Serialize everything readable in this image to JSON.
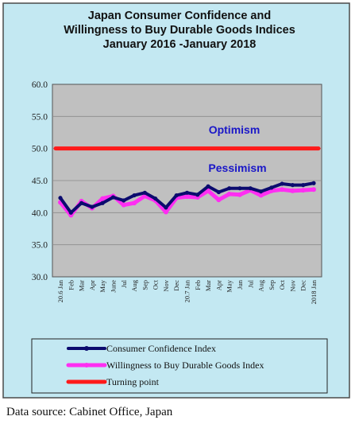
{
  "chart_data": {
    "type": "line",
    "title_lines": [
      "Japan Consumer Confidence and",
      "Willingness to Buy Durable Goods Indices",
      "January 2016 -January 2018"
    ],
    "x": [
      "20.6 Jan",
      "Feb",
      "Mar",
      "Apr",
      "May",
      "June",
      "Jul",
      "Aug",
      "Sep",
      "Oct",
      "Nov",
      "Dec",
      "20.7 Jan",
      "Feb",
      "Mar",
      "Apr",
      "May",
      "Jun",
      "Jul",
      "Aug",
      "Sep",
      "Oct",
      "Nov",
      "Dec",
      "2018 Jan"
    ],
    "y_ticks": [
      "60.0",
      "55.0",
      "50.0",
      "45.0",
      "40.0",
      "35.0",
      "30.0"
    ],
    "ylim": [
      30,
      60
    ],
    "grid": true,
    "series": [
      {
        "name": "Consumer Confidence Index",
        "color": "#0b0b6e",
        "values": [
          42.3,
          40.0,
          41.5,
          40.9,
          41.5,
          42.4,
          41.9,
          42.7,
          43.1,
          42.2,
          40.8,
          42.7,
          43.1,
          42.8,
          44.1,
          43.2,
          43.8,
          43.8,
          43.8,
          43.3,
          43.9,
          44.5,
          44.3,
          44.3,
          44.6
        ]
      },
      {
        "name": "Willingness to Buy Durable Goods Index",
        "color": "#ff2ef2",
        "values": [
          41.6,
          39.6,
          41.8,
          40.7,
          42.2,
          42.6,
          41.2,
          41.5,
          42.6,
          41.9,
          40.1,
          42.3,
          42.5,
          42.4,
          43.4,
          42.0,
          42.9,
          42.8,
          43.5,
          42.7,
          43.4,
          43.6,
          43.4,
          43.5,
          43.6
        ]
      },
      {
        "name": "Turning point",
        "color": "#ff1a1a",
        "values": [
          50,
          50,
          50,
          50,
          50,
          50,
          50,
          50,
          50,
          50,
          50,
          50,
          50,
          50,
          50,
          50,
          50,
          50,
          50,
          50,
          50,
          50,
          50,
          50,
          50
        ]
      }
    ],
    "annotations": [
      "Optimism",
      "Pessimism"
    ],
    "legend_placement": "bottom"
  },
  "source_note": "Data source: Cabinet Office, Japan"
}
